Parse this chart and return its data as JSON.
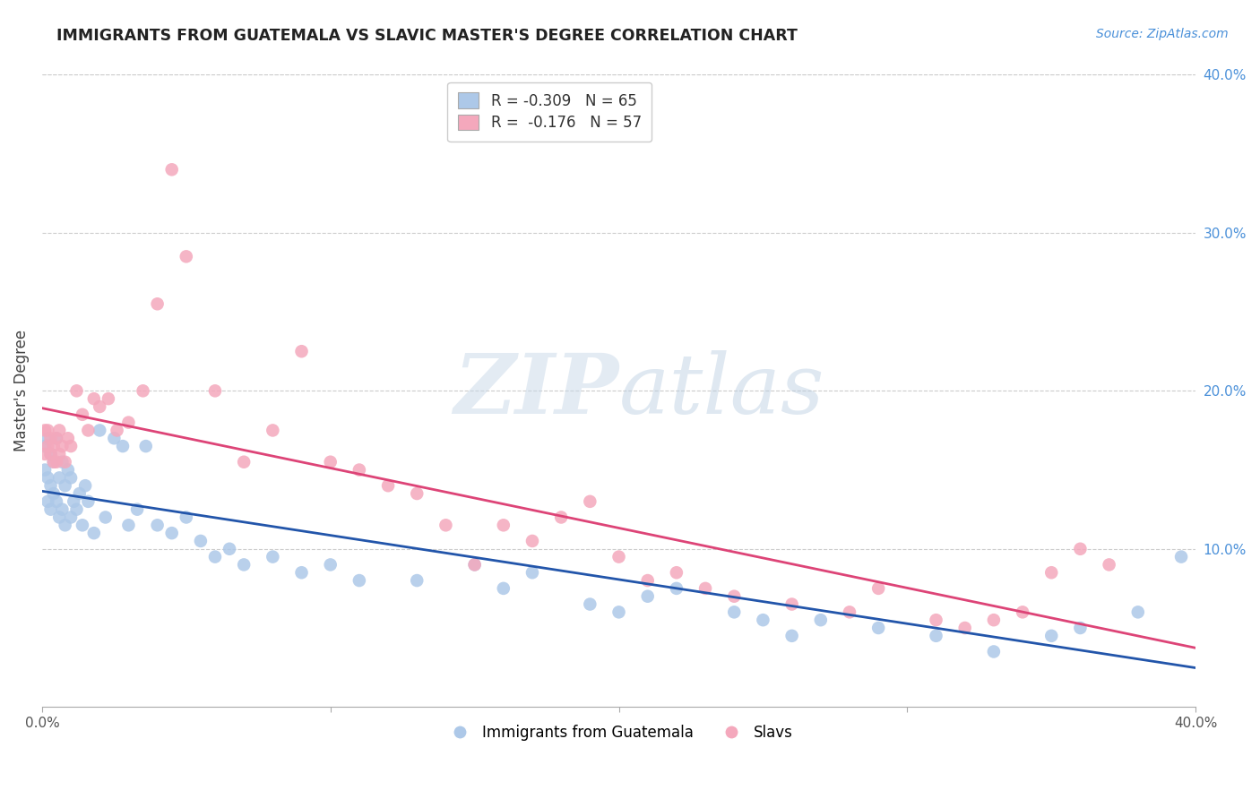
{
  "title": "IMMIGRANTS FROM GUATEMALA VS SLAVIC MASTER'S DEGREE CORRELATION CHART",
  "source": "Source: ZipAtlas.com",
  "ylabel": "Master's Degree",
  "xlim": [
    0.0,
    0.4
  ],
  "ylim": [
    0.0,
    0.4
  ],
  "xtick_labels": [
    "0.0%",
    "",
    "",
    "",
    "40.0%"
  ],
  "xtick_vals": [
    0.0,
    0.1,
    0.2,
    0.3,
    0.4
  ],
  "ytick_labels": [
    "10.0%",
    "20.0%",
    "30.0%",
    "40.0%"
  ],
  "ytick_vals_right": [
    0.1,
    0.2,
    0.3,
    0.4
  ],
  "blue_color": "#adc8e8",
  "pink_color": "#f4a8bc",
  "blue_line_color": "#2255aa",
  "pink_line_color": "#dd4477",
  "legend_blue_r": "-0.309",
  "legend_blue_n": "65",
  "legend_pink_r": "-0.176",
  "legend_pink_n": "57",
  "watermark_zip": "ZIP",
  "watermark_atlas": "atlas",
  "blue_x": [
    0.001,
    0.001,
    0.002,
    0.002,
    0.002,
    0.003,
    0.003,
    0.003,
    0.004,
    0.004,
    0.005,
    0.005,
    0.006,
    0.006,
    0.007,
    0.007,
    0.008,
    0.008,
    0.009,
    0.01,
    0.01,
    0.011,
    0.012,
    0.013,
    0.014,
    0.015,
    0.016,
    0.018,
    0.02,
    0.022,
    0.025,
    0.028,
    0.03,
    0.033,
    0.036,
    0.04,
    0.045,
    0.05,
    0.055,
    0.06,
    0.065,
    0.07,
    0.08,
    0.09,
    0.1,
    0.11,
    0.13,
    0.15,
    0.16,
    0.17,
    0.19,
    0.2,
    0.21,
    0.22,
    0.24,
    0.25,
    0.26,
    0.27,
    0.29,
    0.31,
    0.33,
    0.35,
    0.36,
    0.38,
    0.395
  ],
  "blue_y": [
    0.165,
    0.15,
    0.17,
    0.145,
    0.13,
    0.16,
    0.14,
    0.125,
    0.155,
    0.135,
    0.17,
    0.13,
    0.145,
    0.12,
    0.155,
    0.125,
    0.14,
    0.115,
    0.15,
    0.145,
    0.12,
    0.13,
    0.125,
    0.135,
    0.115,
    0.14,
    0.13,
    0.11,
    0.175,
    0.12,
    0.17,
    0.165,
    0.115,
    0.125,
    0.165,
    0.115,
    0.11,
    0.12,
    0.105,
    0.095,
    0.1,
    0.09,
    0.095,
    0.085,
    0.09,
    0.08,
    0.08,
    0.09,
    0.075,
    0.085,
    0.065,
    0.06,
    0.07,
    0.075,
    0.06,
    0.055,
    0.045,
    0.055,
    0.05,
    0.045,
    0.035,
    0.045,
    0.05,
    0.06,
    0.095
  ],
  "pink_x": [
    0.001,
    0.001,
    0.002,
    0.002,
    0.003,
    0.003,
    0.004,
    0.004,
    0.005,
    0.005,
    0.006,
    0.006,
    0.007,
    0.008,
    0.009,
    0.01,
    0.012,
    0.014,
    0.016,
    0.018,
    0.02,
    0.023,
    0.026,
    0.03,
    0.035,
    0.04,
    0.045,
    0.05,
    0.06,
    0.07,
    0.08,
    0.09,
    0.1,
    0.11,
    0.12,
    0.13,
    0.14,
    0.15,
    0.16,
    0.17,
    0.18,
    0.19,
    0.2,
    0.21,
    0.22,
    0.23,
    0.24,
    0.26,
    0.28,
    0.29,
    0.31,
    0.32,
    0.33,
    0.34,
    0.35,
    0.36,
    0.37
  ],
  "pink_y": [
    0.175,
    0.16,
    0.165,
    0.175,
    0.16,
    0.17,
    0.155,
    0.165,
    0.17,
    0.155,
    0.175,
    0.16,
    0.165,
    0.155,
    0.17,
    0.165,
    0.2,
    0.185,
    0.175,
    0.195,
    0.19,
    0.195,
    0.175,
    0.18,
    0.2,
    0.255,
    0.34,
    0.285,
    0.2,
    0.155,
    0.175,
    0.225,
    0.155,
    0.15,
    0.14,
    0.135,
    0.115,
    0.09,
    0.115,
    0.105,
    0.12,
    0.13,
    0.095,
    0.08,
    0.085,
    0.075,
    0.07,
    0.065,
    0.06,
    0.075,
    0.055,
    0.05,
    0.055,
    0.06,
    0.085,
    0.1,
    0.09
  ]
}
